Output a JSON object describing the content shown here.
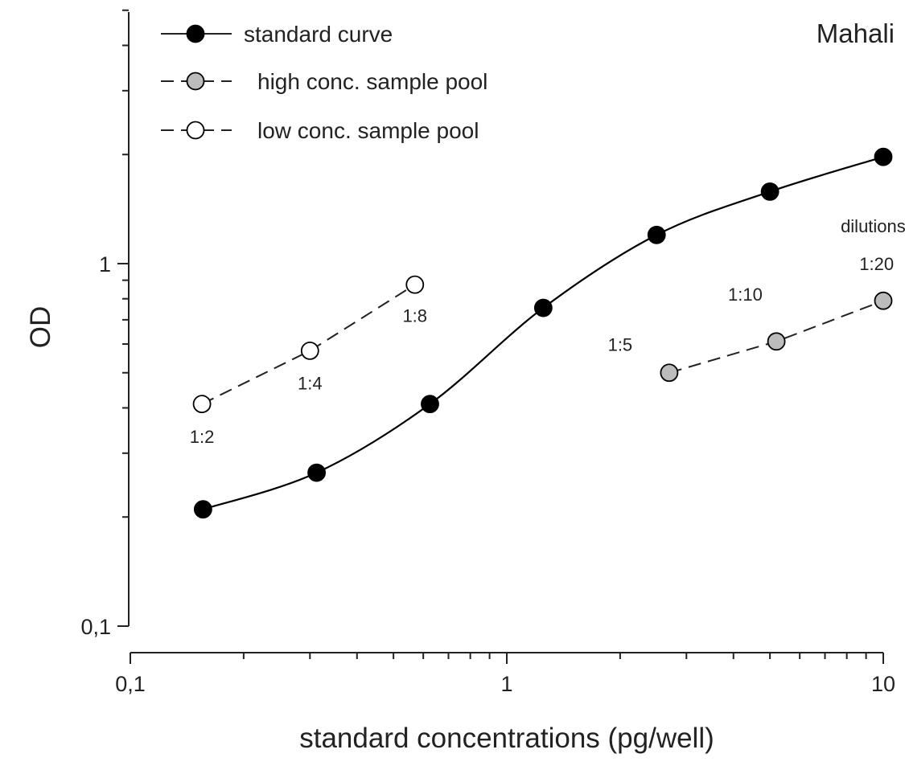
{
  "chart_data": {
    "type": "line",
    "title": "Mahali",
    "xlabel": "standard concentrations (pg/well)",
    "ylabel": "OD",
    "xscale": "log",
    "yscale": "log",
    "xlim": [
      0.1,
      10
    ],
    "ylim": [
      0.1,
      5
    ],
    "x_ticks": [
      {
        "value": 0.1,
        "label": "0,1"
      },
      {
        "value": 1,
        "label": "1"
      },
      {
        "value": 10,
        "label": "10"
      }
    ],
    "y_ticks": [
      {
        "value": 0.1,
        "label": "0,1"
      },
      {
        "value": 1,
        "label": "1"
      }
    ],
    "grid": false,
    "legend_position": "top-left",
    "series": [
      {
        "name": "standard curve",
        "style": "solid",
        "marker_fill": "#000000",
        "x": [
          0.156,
          0.3125,
          0.625,
          1.25,
          2.5,
          5,
          10
        ],
        "y": [
          0.21,
          0.265,
          0.41,
          0.755,
          1.2,
          1.58,
          1.97
        ]
      },
      {
        "name": "high conc. sample pool",
        "style": "dashed",
        "marker_fill": "#bcbcbc",
        "x": [
          2.7,
          5.2,
          10
        ],
        "y": [
          0.5,
          0.61,
          0.79
        ]
      },
      {
        "name": "low conc. sample pool",
        "style": "dashed",
        "marker_fill": "#ffffff",
        "x": [
          0.155,
          0.3,
          0.57
        ],
        "y": [
          0.41,
          0.575,
          0.875
        ]
      }
    ],
    "annotations": [
      {
        "text": "1:2",
        "x": 0.155,
        "y": 0.32
      },
      {
        "text": "1:4",
        "x": 0.3,
        "y": 0.45
      },
      {
        "text": "1:8",
        "x": 0.57,
        "y": 0.69
      },
      {
        "text": "1:5",
        "x": 2.0,
        "y": 0.575
      },
      {
        "text": "1:10",
        "x": 4.3,
        "y": 0.79
      },
      {
        "text": "1:20",
        "x": 9.6,
        "y": 0.96
      },
      {
        "text": "dilutions",
        "x": 9.4,
        "y": 1.22
      }
    ]
  }
}
